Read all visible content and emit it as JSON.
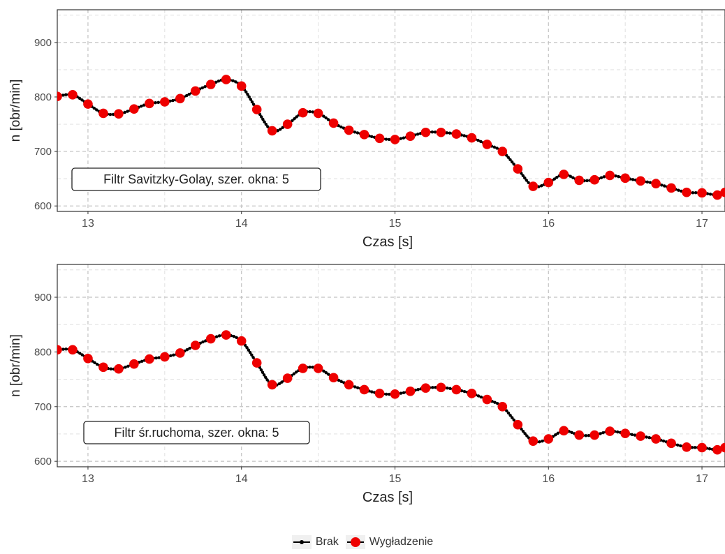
{
  "chart_data": [
    {
      "type": "line",
      "annotation": "Filtr Savitzky-Golay, szer. okna: 5",
      "xlabel": "Czas [s]",
      "ylabel": "n [obr/min]",
      "xlim": [
        12.8,
        17.15
      ],
      "ylim": [
        590,
        960
      ],
      "xticks": [
        "13",
        "14",
        "15",
        "16",
        "17"
      ],
      "yticks": [
        "600",
        "700",
        "800",
        "900"
      ],
      "x": [
        12.8,
        12.9,
        13.0,
        13.1,
        13.2,
        13.3,
        13.4,
        13.5,
        13.6,
        13.7,
        13.8,
        13.9,
        14.0,
        14.1,
        14.2,
        14.3,
        14.4,
        14.5,
        14.6,
        14.7,
        14.8,
        14.9,
        15.0,
        15.1,
        15.2,
        15.3,
        15.4,
        15.5,
        15.6,
        15.7,
        15.8,
        15.9,
        16.0,
        16.1,
        16.2,
        16.3,
        16.4,
        16.5,
        16.6,
        16.7,
        16.8,
        16.9,
        17.0,
        17.1,
        17.15
      ],
      "series": [
        {
          "name": "Brak",
          "values": [
            801,
            804,
            787,
            770,
            769,
            778,
            788,
            791,
            797,
            811,
            823,
            832,
            820,
            777,
            738,
            750,
            771,
            770,
            752,
            739,
            731,
            724,
            722,
            728,
            735,
            735,
            732,
            725,
            713,
            700,
            668,
            636,
            643,
            658,
            647,
            648,
            656,
            651,
            646,
            641,
            633,
            625,
            624,
            620,
            625
          ]
        },
        {
          "name": "Wygładzenie",
          "values": [
            801,
            804,
            787,
            770,
            769,
            778,
            788,
            791,
            797,
            811,
            823,
            832,
            820,
            777,
            738,
            750,
            771,
            770,
            752,
            739,
            731,
            724,
            722,
            728,
            735,
            735,
            732,
            725,
            713,
            700,
            668,
            636,
            643,
            658,
            647,
            648,
            656,
            651,
            646,
            641,
            633,
            625,
            624,
            620,
            625
          ]
        }
      ],
      "grid": true
    },
    {
      "type": "line",
      "annotation": "Filtr śr.ruchoma, szer. okna: 5",
      "xlabel": "Czas [s]",
      "ylabel": "n [obr/min]",
      "xlim": [
        12.8,
        17.15
      ],
      "ylim": [
        590,
        960
      ],
      "xticks": [
        "13",
        "14",
        "15",
        "16",
        "17"
      ],
      "yticks": [
        "600",
        "700",
        "800",
        "900"
      ],
      "x": [
        12.8,
        12.9,
        13.0,
        13.1,
        13.2,
        13.3,
        13.4,
        13.5,
        13.6,
        13.7,
        13.8,
        13.9,
        14.0,
        14.1,
        14.2,
        14.3,
        14.4,
        14.5,
        14.6,
        14.7,
        14.8,
        14.9,
        15.0,
        15.1,
        15.2,
        15.3,
        15.4,
        15.5,
        15.6,
        15.7,
        15.8,
        15.9,
        16.0,
        16.1,
        16.2,
        16.3,
        16.4,
        16.5,
        16.6,
        16.7,
        16.8,
        16.9,
        17.0,
        17.1,
        17.15
      ],
      "series": [
        {
          "name": "Brak",
          "values": [
            804,
            804,
            788,
            772,
            769,
            778,
            787,
            791,
            798,
            812,
            824,
            831,
            820,
            780,
            740,
            752,
            770,
            770,
            753,
            740,
            731,
            724,
            723,
            728,
            734,
            735,
            731,
            724,
            713,
            700,
            667,
            637,
            641,
            656,
            648,
            648,
            655,
            651,
            646,
            641,
            633,
            626,
            625,
            621,
            625
          ]
        },
        {
          "name": "Wygładzenie",
          "values": [
            804,
            804,
            788,
            772,
            769,
            778,
            787,
            791,
            798,
            812,
            824,
            831,
            820,
            780,
            740,
            752,
            770,
            770,
            753,
            740,
            731,
            724,
            723,
            728,
            734,
            735,
            731,
            724,
            713,
            700,
            667,
            637,
            641,
            656,
            648,
            648,
            655,
            651,
            646,
            641,
            633,
            626,
            625,
            621,
            625
          ]
        }
      ],
      "grid": true
    }
  ],
  "legend": {
    "items": [
      {
        "label": "Brak",
        "color": "#000000"
      },
      {
        "label": "Wygładzenie",
        "color": "#ee0000"
      }
    ]
  }
}
